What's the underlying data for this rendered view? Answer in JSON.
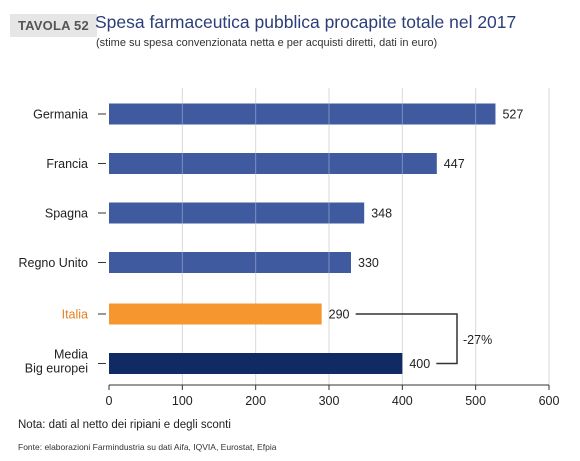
{
  "header": {
    "tag": "TAVOLA 52",
    "title": "Spesa farmaceutica pubblica procapite totale nel 2017",
    "subtitle": "(stime su spesa convenzionata netta e per acquisti diretti, dati in euro)"
  },
  "chart_data": {
    "type": "bar",
    "orientation": "horizontal",
    "categories": [
      "Germania",
      "Francia",
      "Spagna",
      "Regno Unito",
      "Italia",
      "Media Big europei"
    ],
    "category_lines": [
      [
        "Germania"
      ],
      [
        "Francia"
      ],
      [
        "Spagna"
      ],
      [
        "Regno Unito"
      ],
      [
        "Italia"
      ],
      [
        "Media",
        "Big europei"
      ]
    ],
    "values": [
      527,
      447,
      348,
      330,
      290,
      400
    ],
    "value_labels": [
      "527",
      "447",
      "348",
      "330",
      "290",
      "400"
    ],
    "bar_colors": [
      "#3f5a9e",
      "#3f5a9e",
      "#3f5a9e",
      "#3f5a9e",
      "#f5962f",
      "#102a63"
    ],
    "xlim": [
      0,
      600
    ],
    "xticks": [
      0,
      100,
      200,
      300,
      400,
      500,
      600
    ],
    "xtick_labels": [
      "0",
      "100",
      "200",
      "300",
      "400",
      "500",
      "600"
    ],
    "grid": true,
    "annotation": {
      "text": "-27%",
      "between": [
        "Italia",
        "Media Big europei"
      ]
    }
  },
  "footer": {
    "note": "Nota: dati al netto dei ripiani e degli sconti",
    "source": "Fonte: elaborazioni Farmindustria su dati Aifa, IQVIA, Eurostat, Efpia"
  }
}
